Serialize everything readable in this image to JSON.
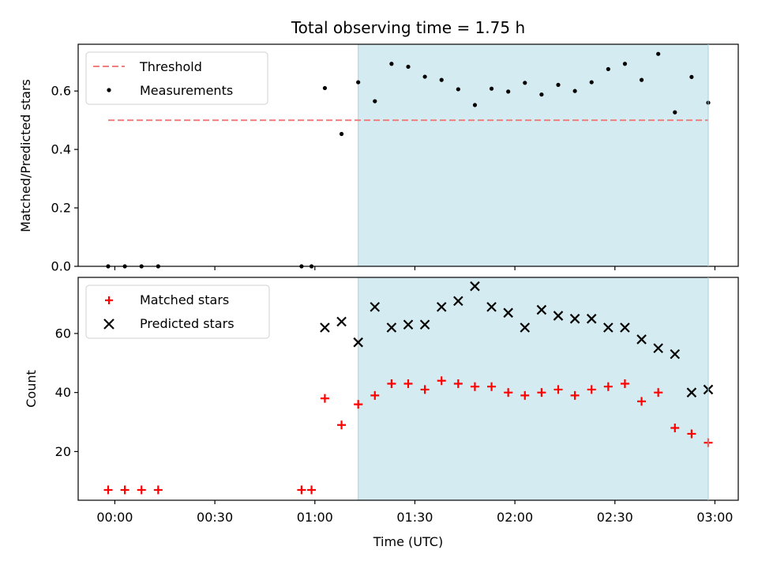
{
  "chart_data": [
    {
      "type": "scatter",
      "title": "Total observing time = 1.75 h",
      "ylabel": "Matched/Predicted stars",
      "ylim": [
        0,
        0.76
      ],
      "yticks": [
        "0.0",
        "0.2",
        "0.4",
        "0.6"
      ],
      "yticks_values": [
        0,
        0.2,
        0.4,
        0.6
      ],
      "xlim_minutes": [
        -11,
        187
      ],
      "shaded_region_minutes": [
        73,
        178
      ],
      "shaded_color": "#d4ebf1",
      "threshold": {
        "name": "Threshold",
        "value": 0.5,
        "x_range_minutes": [
          -2,
          178
        ],
        "color": "#f08080"
      },
      "series": [
        {
          "name": "Measurements",
          "color": "#000000",
          "x_minutes": [
            -2,
            3,
            8,
            13,
            56,
            59,
            63,
            68,
            73,
            78,
            83,
            88,
            93,
            98,
            103,
            108,
            113,
            118,
            123,
            128,
            133,
            138,
            143,
            148,
            153,
            158,
            163,
            168,
            173,
            178
          ],
          "y": [
            0,
            0,
            0,
            0,
            0,
            0,
            0.61,
            0.453,
            0.63,
            0.565,
            0.693,
            0.683,
            0.649,
            0.638,
            0.606,
            0.552,
            0.608,
            0.598,
            0.628,
            0.588,
            0.621,
            0.6,
            0.63,
            0.675,
            0.693,
            0.638,
            0.727,
            0.527,
            0.648,
            0.56
          ]
        }
      ]
    },
    {
      "type": "scatter",
      "xlabel": "Time (UTC)",
      "ylabel": "Count",
      "ylim": [
        3.5,
        79
      ],
      "yticks": [
        "20",
        "40",
        "60"
      ],
      "yticks_values": [
        20,
        40,
        60
      ],
      "xlim_minutes": [
        -11,
        187
      ],
      "xticks": [
        "00:00",
        "00:30",
        "01:00",
        "01:30",
        "02:00",
        "02:30",
        "03:00"
      ],
      "xticks_minutes": [
        0,
        30,
        60,
        90,
        120,
        150,
        180
      ],
      "shaded_region_minutes": [
        73,
        178
      ],
      "shaded_color": "#d4ebf1",
      "series": [
        {
          "name": "Matched stars",
          "color": "#ff0000",
          "marker": "plus",
          "x_minutes": [
            -2,
            3,
            8,
            13,
            56,
            59,
            63,
            68,
            73,
            78,
            83,
            88,
            93,
            98,
            103,
            108,
            113,
            118,
            123,
            128,
            133,
            138,
            143,
            148,
            153,
            158,
            163,
            168,
            173,
            178
          ],
          "y": [
            7,
            7,
            7,
            7,
            7,
            7,
            38,
            29,
            36,
            39,
            43,
            43,
            41,
            44,
            43,
            42,
            42,
            40,
            39,
            40,
            41,
            39,
            41,
            42,
            43,
            37,
            40,
            28,
            26,
            23
          ]
        },
        {
          "name": "Predicted stars",
          "color": "#000000",
          "marker": "x",
          "x_minutes": [
            63,
            68,
            73,
            78,
            83,
            88,
            93,
            98,
            103,
            108,
            113,
            118,
            123,
            128,
            133,
            138,
            143,
            148,
            153,
            158,
            163,
            168,
            173,
            178
          ],
          "y": [
            62,
            64,
            57,
            69,
            62,
            63,
            63,
            69,
            71,
            76,
            69,
            67,
            62,
            68,
            66,
            65,
            65,
            62,
            62,
            58,
            55,
            53,
            40,
            41
          ]
        }
      ]
    }
  ]
}
